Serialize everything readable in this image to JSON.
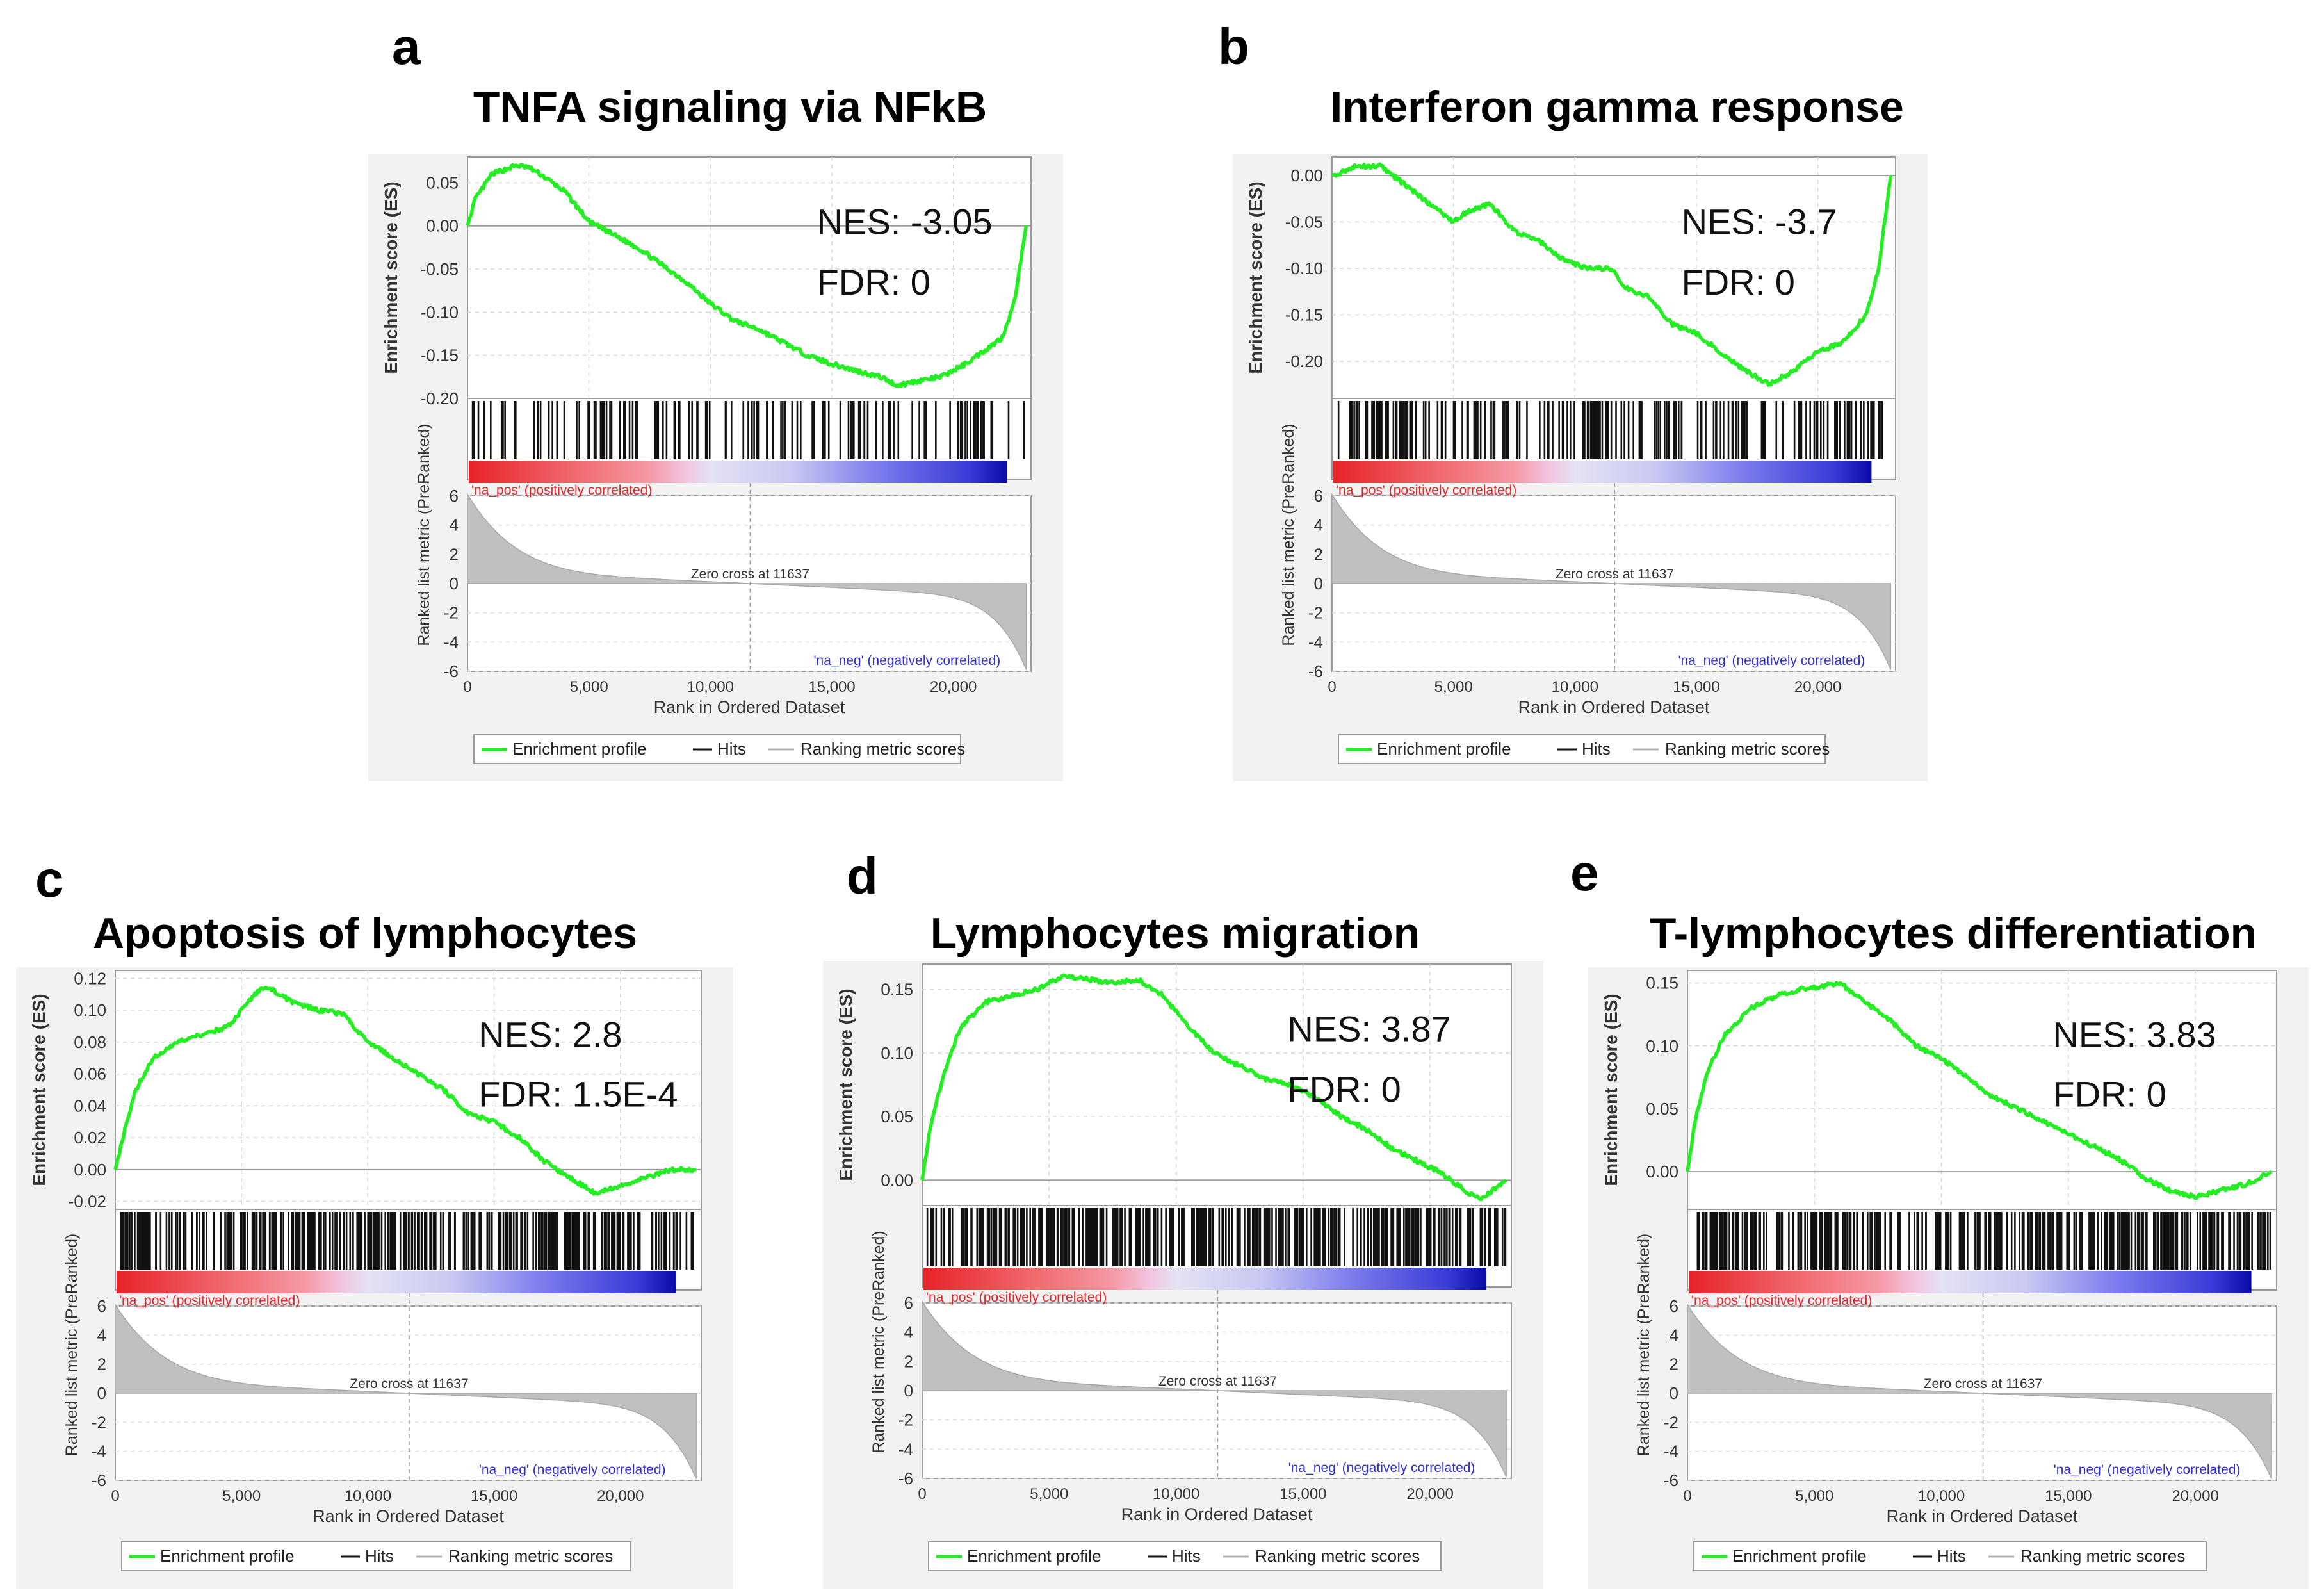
{
  "figure": {
    "common": {
      "ylabel_es": "Enrichment score (ES)",
      "ylabel_metric": "Ranked list metric (PreRanked)",
      "xlabel": "Rank in Ordered Dataset",
      "pos_label": "'na_pos' (positively correlated)",
      "neg_label": "'na_neg' (negatively correlated)",
      "zero_cross": "Zero cross at 11637",
      "legend": [
        "Enrichment profile",
        "Hits",
        "Ranking metric scores"
      ],
      "x_ticks": [
        "0",
        "5,000",
        "10,000",
        "15,000",
        "20,000"
      ],
      "metric_ticks": [
        "6",
        "4",
        "2",
        "0",
        "-2",
        "-4",
        "-6"
      ]
    }
  },
  "chart_data": [
    {
      "type": "line",
      "panel": "a",
      "title": "TNFA signaling via NFkB",
      "nes": "NES: -3.05",
      "fdr": "FDR: 0",
      "ylim": [
        -0.2,
        0.08
      ],
      "y_ticks": [
        "0.05",
        "0.00",
        "-0.05",
        "-0.10",
        "-0.15",
        "-0.20"
      ],
      "y_tick_values": [
        0.05,
        0.0,
        -0.05,
        -0.1,
        -0.15,
        -0.2
      ],
      "xlim": [
        0,
        23200
      ],
      "series": [
        {
          "name": "Enrichment profile",
          "x": [
            0,
            300,
            1000,
            2000,
            2500,
            3000,
            4000,
            5000,
            6000,
            7000,
            8000,
            9000,
            10000,
            11000,
            12000,
            13000,
            14000,
            15000,
            16000,
            17000,
            17700,
            18500,
            19500,
            20500,
            21500,
            22000,
            22500,
            23000
          ],
          "y": [
            0.0,
            0.03,
            0.06,
            0.07,
            0.068,
            0.06,
            0.04,
            0.005,
            -0.01,
            -0.025,
            -0.045,
            -0.065,
            -0.09,
            -0.11,
            -0.12,
            -0.135,
            -0.15,
            -0.16,
            -0.168,
            -0.175,
            -0.185,
            -0.18,
            -0.175,
            -0.16,
            -0.14,
            -0.13,
            -0.09,
            0.0
          ]
        }
      ],
      "hit_density": "sparse"
    },
    {
      "type": "line",
      "panel": "b",
      "title": "Interferon gamma response",
      "nes": "NES: -3.7",
      "fdr": "FDR: 0",
      "ylim": [
        -0.24,
        0.02
      ],
      "y_ticks": [
        "0.00",
        "-0.05",
        "-0.10",
        "-0.15",
        "-0.20"
      ],
      "y_tick_values": [
        0.0,
        -0.05,
        -0.1,
        -0.15,
        -0.2
      ],
      "xlim": [
        0,
        23200
      ],
      "series": [
        {
          "name": "Enrichment profile",
          "x": [
            0,
            1000,
            2000,
            3000,
            4000,
            5000,
            5500,
            6500,
            7500,
            8500,
            9500,
            10500,
            11500,
            12000,
            13000,
            14000,
            15000,
            16000,
            17000,
            18000,
            19000,
            20000,
            21000,
            22000,
            22500,
            23000
          ],
          "y": [
            0.0,
            0.01,
            0.01,
            -0.01,
            -0.03,
            -0.05,
            -0.04,
            -0.03,
            -0.06,
            -0.07,
            -0.09,
            -0.1,
            -0.1,
            -0.12,
            -0.13,
            -0.16,
            -0.17,
            -0.19,
            -0.21,
            -0.225,
            -0.21,
            -0.19,
            -0.18,
            -0.15,
            -0.1,
            0.0
          ]
        }
      ],
      "hit_density": "medium"
    },
    {
      "type": "line",
      "panel": "c",
      "title": "Apoptosis of lymphocytes",
      "nes": "NES: 2.8",
      "fdr": "FDR: 1.5E-4",
      "ylim": [
        -0.025,
        0.125
      ],
      "y_ticks": [
        "0.12",
        "0.10",
        "0.08",
        "0.06",
        "0.04",
        "0.02",
        "0.00",
        "-0.02"
      ],
      "y_tick_values": [
        0.12,
        0.1,
        0.08,
        0.06,
        0.04,
        0.02,
        0.0,
        -0.02
      ],
      "xlim": [
        0,
        23200
      ],
      "series": [
        {
          "name": "Enrichment profile",
          "x": [
            0,
            300,
            800,
            1500,
            2500,
            3500,
            4500,
            5500,
            6000,
            7000,
            8000,
            9000,
            10000,
            11000,
            12000,
            13000,
            14000,
            15000,
            16000,
            17000,
            18000,
            19000,
            20000,
            21000,
            22000,
            23000
          ],
          "y": [
            0.0,
            0.02,
            0.05,
            0.07,
            0.08,
            0.085,
            0.09,
            0.11,
            0.115,
            0.105,
            0.1,
            0.098,
            0.08,
            0.07,
            0.06,
            0.05,
            0.035,
            0.03,
            0.02,
            0.005,
            -0.005,
            -0.015,
            -0.01,
            -0.005,
            0.0,
            0.0
          ]
        }
      ],
      "hit_density": "dense"
    },
    {
      "type": "line",
      "panel": "d",
      "title": "Lymphocytes migration",
      "nes": "NES: 3.87",
      "fdr": "FDR: 0",
      "ylim": [
        -0.02,
        0.17
      ],
      "y_ticks": [
        "0.15",
        "0.10",
        "0.05",
        "0.00"
      ],
      "y_tick_values": [
        0.15,
        0.1,
        0.05,
        0.0
      ],
      "xlim": [
        0,
        23200
      ],
      "series": [
        {
          "name": "Enrichment profile",
          "x": [
            0,
            300,
            800,
            1500,
            2500,
            3500,
            4500,
            5500,
            6500,
            7500,
            8500,
            9500,
            10500,
            11500,
            12500,
            13500,
            14500,
            15500,
            16500,
            17500,
            18500,
            19500,
            20500,
            21500,
            22000,
            23000
          ],
          "y": [
            0.0,
            0.04,
            0.08,
            0.12,
            0.14,
            0.145,
            0.15,
            0.16,
            0.158,
            0.155,
            0.158,
            0.145,
            0.12,
            0.1,
            0.09,
            0.08,
            0.075,
            0.065,
            0.05,
            0.04,
            0.025,
            0.015,
            0.005,
            -0.01,
            -0.015,
            0.0
          ]
        }
      ],
      "hit_density": "dense"
    },
    {
      "type": "line",
      "panel": "e",
      "title": "T-lymphocytes differentiation",
      "nes": "NES: 3.83",
      "fdr": "FDR: 0",
      "ylim": [
        -0.03,
        0.16
      ],
      "y_ticks": [
        "0.15",
        "0.10",
        "0.05",
        "0.00"
      ],
      "y_tick_values": [
        0.15,
        0.1,
        0.05,
        0.0
      ],
      "xlim": [
        0,
        23200
      ],
      "series": [
        {
          "name": "Enrichment profile",
          "x": [
            0,
            300,
            800,
            1500,
            2500,
            3500,
            4500,
            5500,
            6000,
            7000,
            8000,
            9000,
            10000,
            11000,
            12000,
            13000,
            14000,
            15000,
            16000,
            17000,
            18000,
            19000,
            20000,
            21000,
            22000,
            23000
          ],
          "y": [
            0.0,
            0.04,
            0.08,
            0.11,
            0.13,
            0.14,
            0.145,
            0.148,
            0.15,
            0.135,
            0.12,
            0.1,
            0.09,
            0.075,
            0.06,
            0.05,
            0.04,
            0.03,
            0.02,
            0.01,
            -0.005,
            -0.015,
            -0.02,
            -0.015,
            -0.01,
            0.0
          ]
        }
      ],
      "hit_density": "dense"
    }
  ]
}
